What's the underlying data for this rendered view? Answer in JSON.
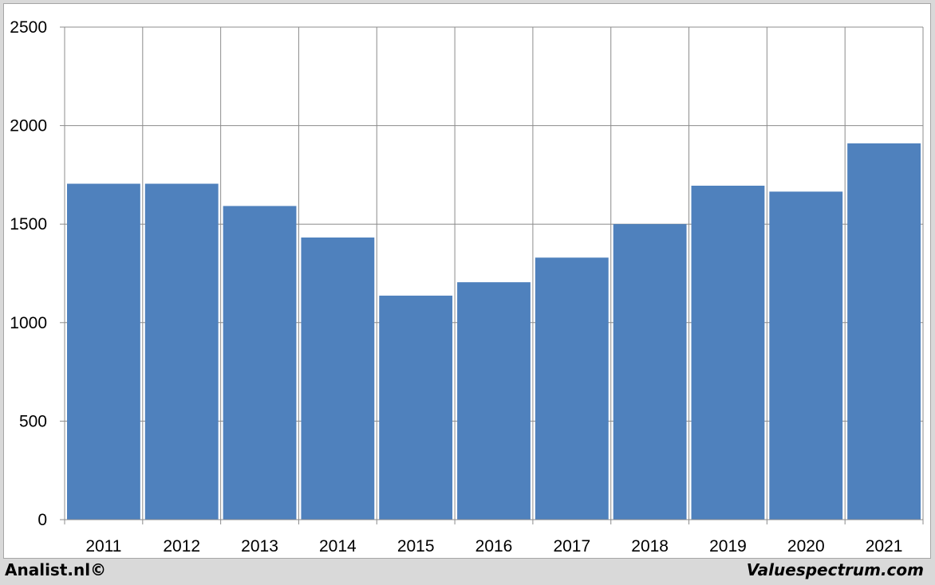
{
  "chart_data": {
    "type": "bar",
    "categories": [
      "2011",
      "2012",
      "2013",
      "2014",
      "2015",
      "2016",
      "2017",
      "2018",
      "2019",
      "2020",
      "2021"
    ],
    "values": [
      1705,
      1705,
      1592,
      1432,
      1137,
      1205,
      1330,
      1500,
      1695,
      1665,
      1910
    ],
    "ylim": [
      0,
      2500
    ],
    "yticks": [
      0,
      500,
      1000,
      1500,
      2000,
      2500
    ],
    "grid": true,
    "bar_color": "#4f81bd",
    "title": "",
    "xlabel": "",
    "ylabel": ""
  },
  "footer": {
    "left": "Analist.nl©",
    "right": "Valuespectrum.com"
  }
}
